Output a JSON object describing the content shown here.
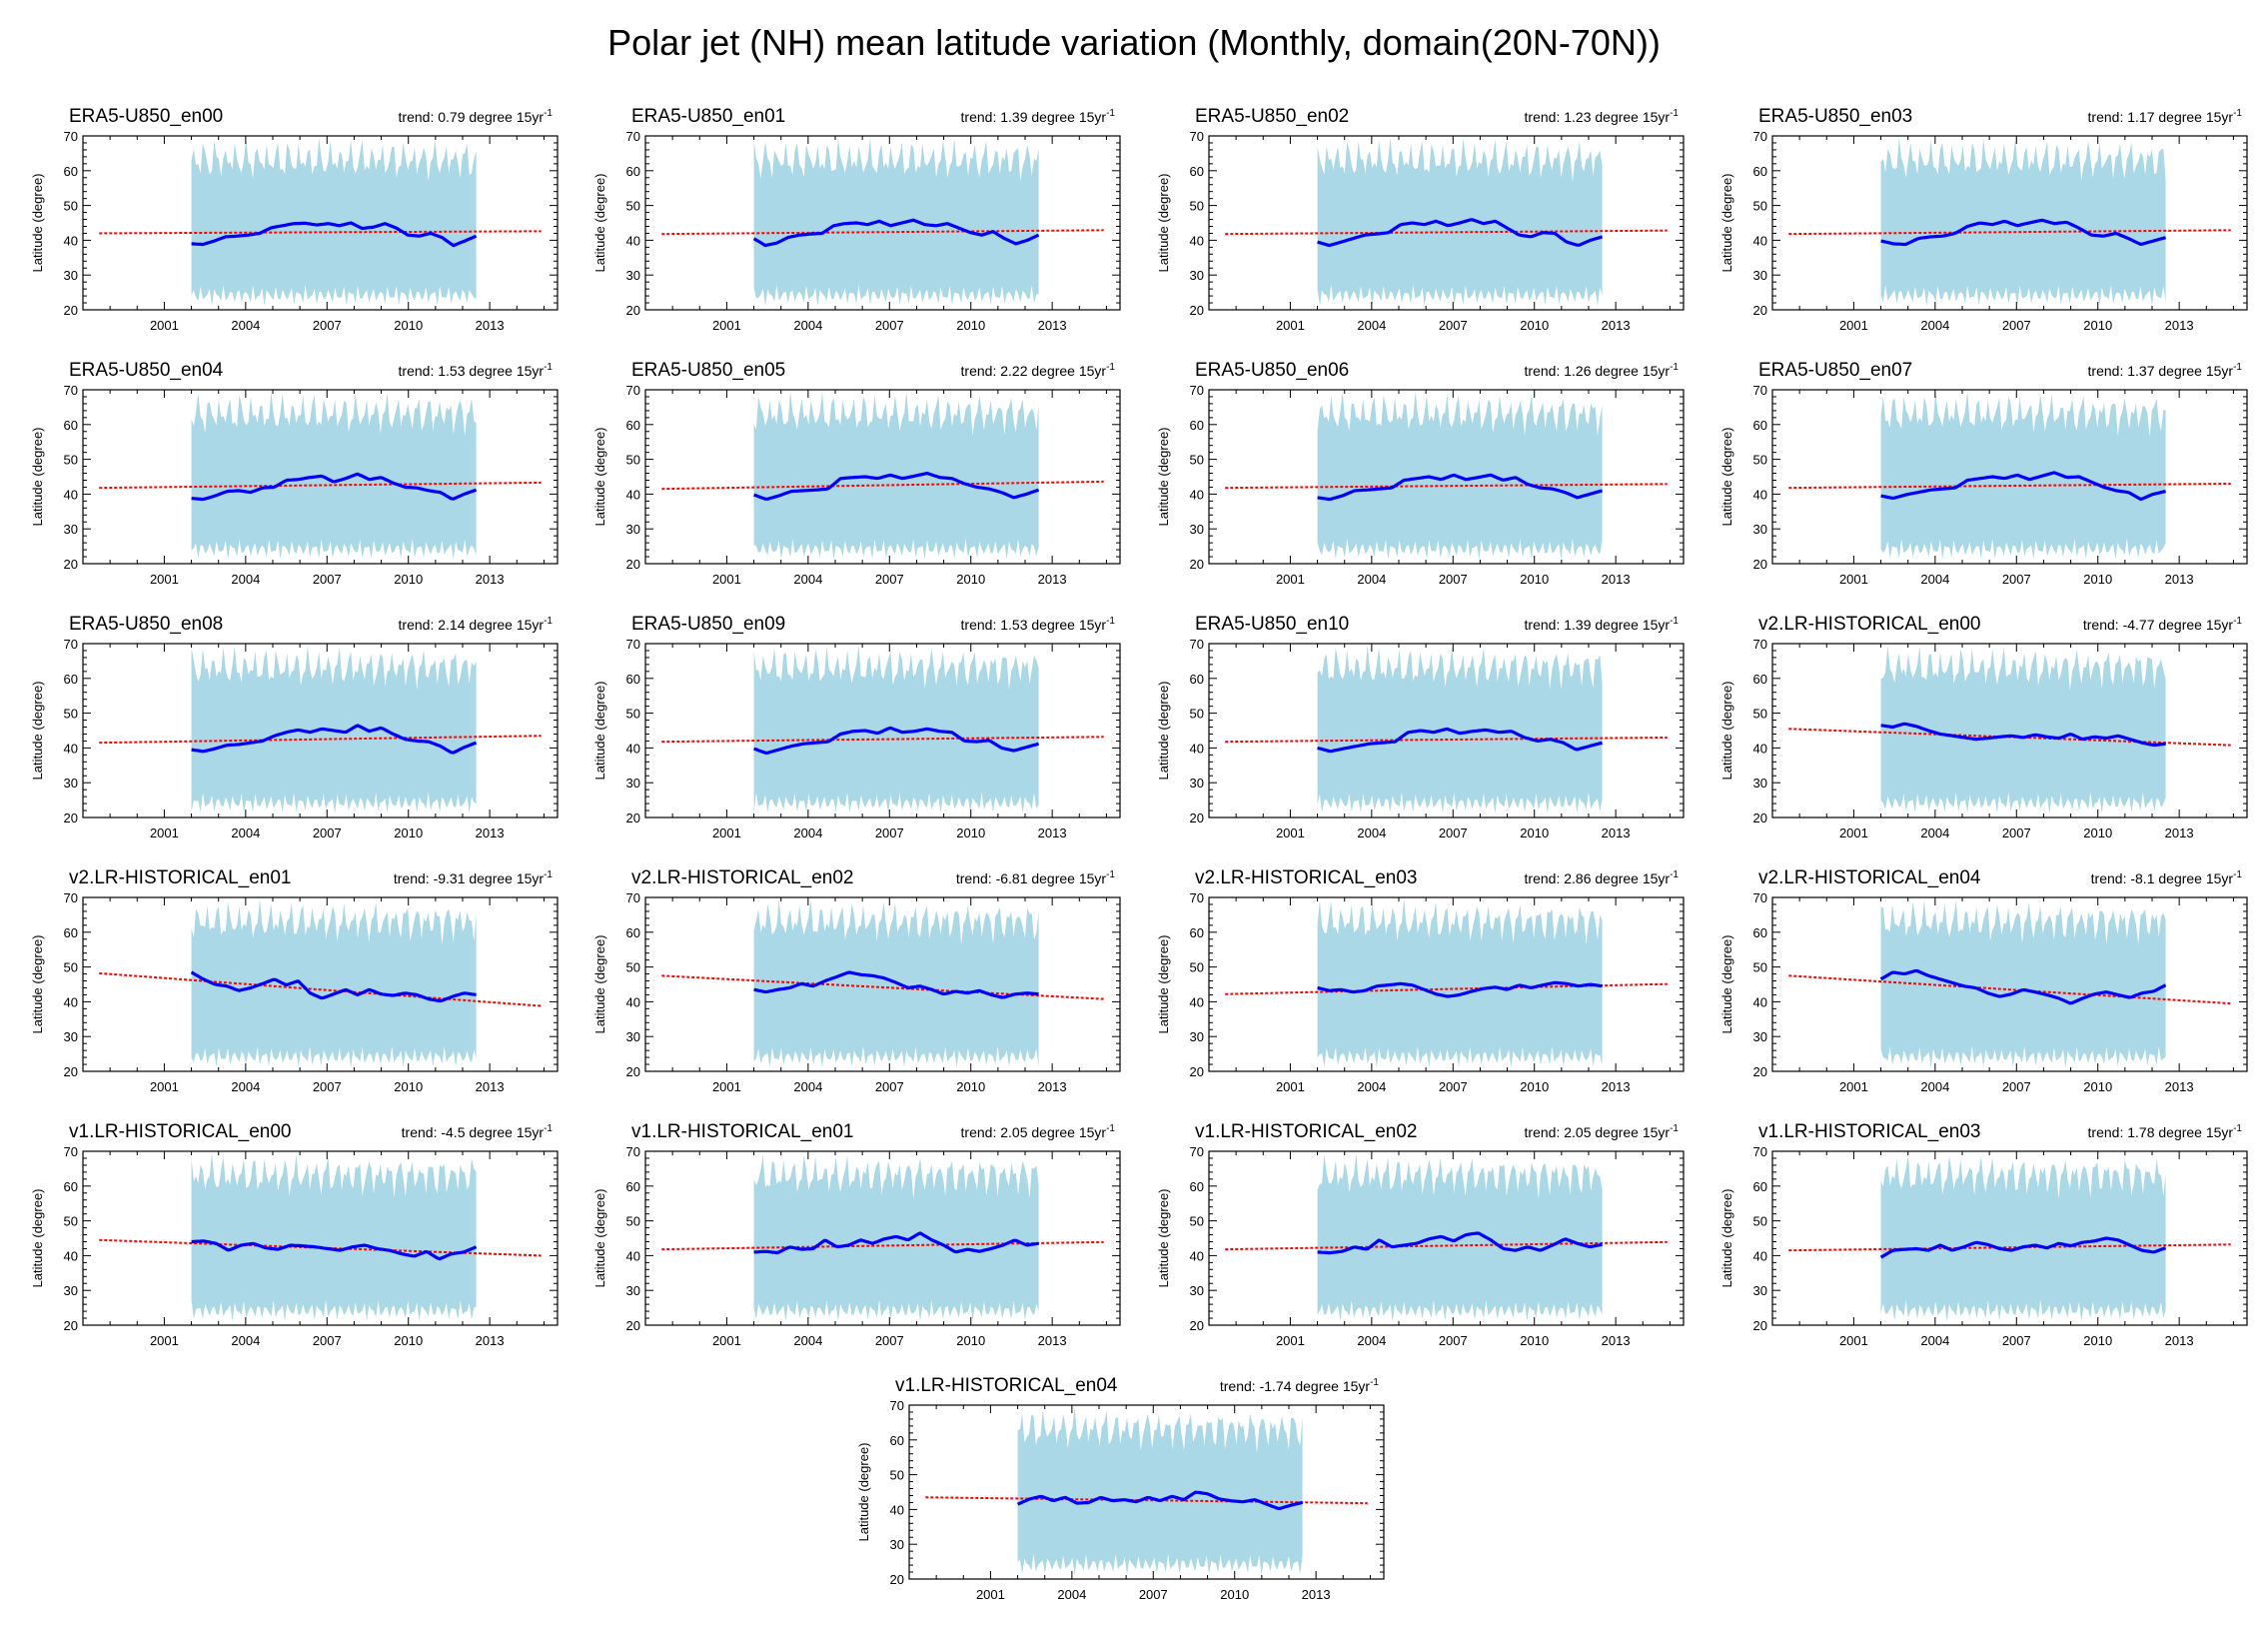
{
  "title": "Polar jet (NH) mean latitude variation (Monthly, domain(20N-70N))",
  "colors": {
    "band": "#aad8e6",
    "mean": "#0000ff",
    "trend": "#ff0000"
  },
  "chart_data": {
    "type": "line",
    "ylabel": "Latitude (degree)",
    "ylim": [
      20,
      70
    ],
    "yticks": [
      20,
      30,
      40,
      50,
      60,
      70
    ],
    "xlim": [
      1998,
      2015.5
    ],
    "xticks": [
      2001,
      2004,
      2007,
      2010,
      2013
    ],
    "data_range": [
      2002,
      2012.5
    ],
    "trend_unit": "degree 15yr",
    "trend_unit_sup": "-1",
    "panels": [
      {
        "name": "ERA5-U850_en00",
        "trend_label": "trend: 0.79",
        "trend": [
          42.0,
          42.6
        ],
        "mean": [
          39,
          38.8,
          39.8,
          41,
          41.2,
          41.5,
          42,
          43.6,
          44.2,
          44.8,
          44.9,
          44.4,
          44.8,
          44.2,
          45,
          43.4,
          43.8,
          44.8,
          43.5,
          41.5,
          41.2,
          42,
          40.8,
          38.5,
          39.8,
          41.2
        ]
      },
      {
        "name": "ERA5-U850_en01",
        "trend_label": "trend: 1.39",
        "trend": [
          41.8,
          42.9
        ],
        "mean": [
          40.5,
          38.5,
          39.2,
          40.8,
          41.5,
          41.8,
          42,
          44.2,
          44.8,
          45,
          44.5,
          45.5,
          44.2,
          45,
          45.8,
          44.5,
          44.2,
          44.8,
          43.5,
          42.2,
          41.5,
          42.5,
          40.5,
          39,
          40,
          41.5
        ]
      },
      {
        "name": "ERA5-U850_en02",
        "trend_label": "trend: 1.23",
        "trend": [
          41.8,
          42.8
        ],
        "mean": [
          39.5,
          38.5,
          39.5,
          40.5,
          41.5,
          41.8,
          42.2,
          44.5,
          45,
          44.5,
          45.5,
          44.2,
          45,
          46,
          44.8,
          45.5,
          43.5,
          41.5,
          41,
          42.2,
          42,
          39.5,
          38.5,
          40,
          41
        ]
      },
      {
        "name": "ERA5-U850_en03",
        "trend_label": "trend: 1.17",
        "trend": [
          41.8,
          42.9
        ],
        "mean": [
          39.8,
          39,
          38.8,
          40.5,
          41,
          41.2,
          42,
          44,
          45,
          44.5,
          45.5,
          44.2,
          45,
          45.8,
          44.8,
          45.2,
          43.5,
          41.5,
          41.2,
          42,
          40.5,
          38.8,
          39.8,
          40.8
        ]
      },
      {
        "name": "ERA5-U850_en04",
        "trend_label": "trend: 1.53",
        "trend": [
          41.8,
          43.3
        ],
        "mean": [
          38.8,
          38.5,
          39.5,
          40.8,
          41,
          40.5,
          41.8,
          42,
          44,
          44.2,
          44.8,
          45.2,
          43.5,
          44.5,
          45.8,
          44.2,
          44.8,
          43.2,
          42,
          41.8,
          41,
          40.5,
          38.5,
          40,
          41.2
        ]
      },
      {
        "name": "ERA5-U850_en05",
        "trend_label": "trend: 2.22",
        "trend": [
          41.5,
          43.6
        ],
        "mean": [
          39.8,
          38.5,
          39.5,
          40.8,
          41,
          41.2,
          41.5,
          44.5,
          44.8,
          45,
          44.5,
          45.5,
          44.5,
          45.2,
          46,
          44.8,
          44.5,
          43,
          42,
          41.5,
          40.5,
          39,
          40,
          41.2
        ]
      },
      {
        "name": "ERA5-U850_en06",
        "trend_label": "trend: 1.26",
        "trend": [
          41.8,
          42.9
        ],
        "mean": [
          39,
          38.5,
          39.5,
          41,
          41.2,
          41.5,
          41.8,
          44,
          44.5,
          45,
          44.2,
          45.5,
          44.2,
          44.8,
          45.5,
          44,
          44.8,
          42.8,
          41.8,
          41.5,
          40.5,
          39,
          40,
          41
        ]
      },
      {
        "name": "ERA5-U850_en07",
        "trend_label": "trend: 1.37",
        "trend": [
          41.8,
          43
        ],
        "mean": [
          39.5,
          38.8,
          39.8,
          40.5,
          41.2,
          41.5,
          41.8,
          44,
          44.5,
          45,
          44.5,
          45.5,
          44.2,
          45.2,
          46.2,
          44.8,
          45,
          43.5,
          42,
          41,
          40.5,
          38.5,
          40,
          40.8
        ]
      },
      {
        "name": "ERA5-U850_en08",
        "trend_label": "trend: 2.14",
        "trend": [
          41.5,
          43.5
        ],
        "mean": [
          39.5,
          39,
          39.8,
          40.8,
          41,
          41.5,
          42,
          43.5,
          44.5,
          45.2,
          44.5,
          45.5,
          45,
          44.5,
          46.5,
          44.8,
          45.8,
          44,
          42.5,
          42,
          41.8,
          40.5,
          38.5,
          40.2,
          41.5
        ]
      },
      {
        "name": "ERA5-U850_en09",
        "trend_label": "trend: 1.53",
        "trend": [
          41.8,
          43.2
        ],
        "mean": [
          39.8,
          38.5,
          39.5,
          40.5,
          41.2,
          41.5,
          41.8,
          44,
          44.8,
          45,
          44.2,
          45.8,
          44.5,
          44.8,
          45.5,
          44.8,
          44.5,
          42,
          41.8,
          42.2,
          40,
          39.2,
          40.2,
          41.2
        ]
      },
      {
        "name": "ERA5-U850_en10",
        "trend_label": "trend: 1.39",
        "trend": [
          41.8,
          43
        ],
        "mean": [
          40,
          39,
          39.8,
          40.5,
          41.2,
          41.5,
          41.8,
          44.5,
          45,
          44.5,
          45.5,
          44.2,
          44.8,
          45.2,
          44.5,
          44.8,
          43,
          42,
          42.5,
          41.5,
          39.5,
          40.5,
          41.5
        ]
      },
      {
        "name": "v2.LR-HISTORICAL_en00",
        "trend_label": "trend: -4.77",
        "trend": [
          45.5,
          40.8
        ],
        "mean": [
          46.5,
          46,
          47,
          46.2,
          45,
          44,
          43.5,
          43,
          42.5,
          42.8,
          43.2,
          43.5,
          43,
          43.8,
          43.2,
          42.8,
          44,
          42.5,
          43.2,
          42.8,
          43.5,
          42.5,
          41.5,
          40.8,
          41.2
        ]
      },
      {
        "name": "v2.LR-HISTORICAL_en01",
        "trend_label": "trend: -9.31",
        "trend": [
          48.2,
          38.8
        ],
        "mean": [
          48.5,
          46.5,
          45,
          44.5,
          43.2,
          44,
          45.2,
          46.5,
          44.8,
          46,
          42.5,
          41,
          42.2,
          43.5,
          42,
          43.5,
          42.2,
          41.8,
          42.5,
          42,
          40.8,
          40.2,
          41.5,
          42.5,
          42
        ]
      },
      {
        "name": "v2.LR-HISTORICAL_en02",
        "trend_label": "trend: -6.81",
        "trend": [
          47.5,
          40.8
        ],
        "mean": [
          43.5,
          42.8,
          43.5,
          44,
          45.2,
          44.5,
          46,
          47.2,
          48.5,
          47.8,
          47.5,
          46.8,
          45.5,
          44,
          44.5,
          43.5,
          42.2,
          43,
          42.5,
          43.2,
          42,
          41.2,
          42.2,
          42.5,
          42.2
        ]
      },
      {
        "name": "v2.LR-HISTORICAL_en03",
        "trend_label": "trend: 2.86",
        "trend": [
          42.2,
          45.1
        ],
        "mean": [
          44,
          43.2,
          43.5,
          42.8,
          43.2,
          44.5,
          44.8,
          45.2,
          44.8,
          43.5,
          42.2,
          41.5,
          42,
          43,
          43.8,
          44.2,
          43.5,
          44.8,
          44,
          44.8,
          45.5,
          45.2,
          44.5,
          45,
          44.5
        ]
      },
      {
        "name": "v2.LR-HISTORICAL_en04",
        "trend_label": "trend: -8.1",
        "trend": [
          47.5,
          39.5
        ],
        "mean": [
          46.5,
          48.5,
          48,
          49,
          47.5,
          46.5,
          45.5,
          44.5,
          44,
          42.5,
          41.5,
          42.2,
          43.5,
          42.8,
          42,
          41,
          39.5,
          41,
          42.2,
          42.8,
          42,
          41.2,
          42.5,
          43,
          44.8
        ]
      },
      {
        "name": "v1.LR-HISTORICAL_en00",
        "trend_label": "trend: -4.5",
        "trend": [
          44.5,
          40
        ],
        "mean": [
          44,
          44.2,
          43.5,
          41.5,
          43,
          43.5,
          42.2,
          41.8,
          43,
          42.8,
          42.5,
          42,
          41.5,
          42.5,
          43,
          42,
          41.5,
          40.5,
          39.8,
          41.2,
          39,
          40.5,
          41,
          42.5
        ]
      },
      {
        "name": "v1.LR-HISTORICAL_en01",
        "trend_label": "trend: 2.05",
        "trend": [
          41.8,
          43.9
        ],
        "mean": [
          41,
          41.2,
          40.8,
          42.5,
          41.8,
          42,
          44.5,
          42.5,
          43,
          44.5,
          43.5,
          44.8,
          45.5,
          44.5,
          46.5,
          44.5,
          43,
          41,
          41.8,
          41.2,
          42,
          43,
          44.5,
          43,
          43.5
        ]
      },
      {
        "name": "v1.LR-HISTORICAL_en02",
        "trend_label": "trend: 2.05",
        "trend": [
          41.8,
          43.9
        ],
        "mean": [
          41,
          40.8,
          41.2,
          42.5,
          41.8,
          44.5,
          42.5,
          43,
          43.5,
          44.8,
          45.5,
          44.2,
          46,
          46.5,
          44.5,
          42,
          41.5,
          42.5,
          41.5,
          43,
          44.8,
          43.5,
          42.5,
          43.2
        ]
      },
      {
        "name": "v1.LR-HISTORICAL_en03",
        "trend_label": "trend: 1.78",
        "trend": [
          41.5,
          43.2
        ],
        "mean": [
          39.5,
          41.5,
          41.8,
          42,
          41.5,
          43,
          41.5,
          42.5,
          43.8,
          43.2,
          42,
          41.5,
          42.5,
          43,
          42.2,
          43.5,
          42.8,
          43.8,
          44.2,
          45,
          44.5,
          43,
          41.5,
          41,
          42.2
        ]
      },
      {
        "name": "v1.LR-HISTORICAL_en04",
        "trend_label": "trend: -1.74",
        "trend": [
          43.5,
          41.8
        ],
        "mean": [
          41.5,
          43,
          43.8,
          42.5,
          43.5,
          41.8,
          42,
          43.5,
          42.5,
          42.8,
          42.2,
          43.5,
          42.5,
          43.8,
          42.8,
          45,
          44.5,
          43,
          42.5,
          42.2,
          42.8,
          41.5,
          40.2,
          41.2,
          42
        ]
      }
    ]
  }
}
